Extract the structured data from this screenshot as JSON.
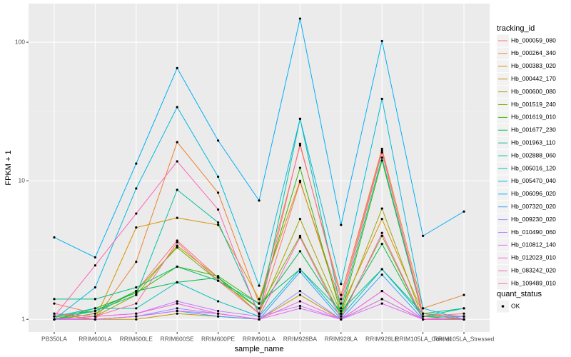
{
  "chart_data": {
    "type": "line",
    "x_label": "sample_name",
    "y_label": "FPKM + 1",
    "categories": [
      "PB350LA",
      "RRIM600LA",
      "RRIM600LE",
      "RRIM600SE",
      "RRIM600PE",
      "RRIM901LA",
      "RRIM928BA",
      "RRIM928LA",
      "RRIM928LE",
      "RRIM105LA_Control",
      "RRIM105LA_Stressed"
    ],
    "log_y": true,
    "ylim": [
      0.81,
      190
    ],
    "yticks": [
      1,
      10,
      100
    ],
    "grid": true,
    "legend_title": "tracking_id",
    "legend_position": "right",
    "point_legend": {
      "title": "quant_status",
      "items": [
        "OK"
      ]
    },
    "series": [
      {
        "name": "Hb_000059_080",
        "color": "#F8766D",
        "values": [
          1.3,
          1.1,
          1.6,
          3.7,
          2.0,
          1.1,
          9.8,
          1.3,
          16,
          1.1,
          1.05
        ]
      },
      {
        "name": "Hb_000264_340",
        "color": "#EA8331",
        "values": [
          1.1,
          1.0,
          2.6,
          19,
          8.2,
          1.3,
          18,
          1.5,
          17,
          1.2,
          1.5
        ]
      },
      {
        "name": "Hb_000383_020",
        "color": "#D89000",
        "values": [
          1.05,
          1.0,
          4.6,
          5.4,
          4.8,
          1.4,
          10,
          1.2,
          5.3,
          1.1,
          1.0
        ]
      },
      {
        "name": "Hb_000442_170",
        "color": "#C09B00",
        "values": [
          1.0,
          1.0,
          1.0,
          1.1,
          1.05,
          1.0,
          1.5,
          1.0,
          1.4,
          1.0,
          1.0
        ]
      },
      {
        "name": "Hb_000600_080",
        "color": "#A3A500",
        "values": [
          1.0,
          1.05,
          1.5,
          3.4,
          2.0,
          1.1,
          5.3,
          1.1,
          6.3,
          1.0,
          1.05
        ]
      },
      {
        "name": "Hb_001519_240",
        "color": "#7CAE00",
        "values": [
          1.0,
          1.1,
          1.6,
          3.3,
          1.9,
          1.2,
          4.0,
          1.05,
          4.0,
          1.0,
          1.0
        ]
      },
      {
        "name": "Hb_001619_010",
        "color": "#39B600",
        "values": [
          1.0,
          1.2,
          1.55,
          2.4,
          2.05,
          1.3,
          12.4,
          1.1,
          14,
          1.05,
          1.0
        ]
      },
      {
        "name": "Hb_001677_230",
        "color": "#00BB4E",
        "values": [
          1.05,
          1.15,
          1.6,
          1.85,
          2.0,
          1.2,
          3.1,
          1.1,
          3.5,
          1.0,
          1.0
        ]
      },
      {
        "name": "Hb_001963_110",
        "color": "#00BF7D",
        "values": [
          1.4,
          1.4,
          1.7,
          2.4,
          1.9,
          1.3,
          2.3,
          1.15,
          2.3,
          1.1,
          1.2
        ]
      },
      {
        "name": "Hb_002888_060",
        "color": "#00C1A3",
        "values": [
          1.0,
          1.15,
          1.5,
          8.6,
          5.0,
          1.1,
          28,
          1.2,
          14.7,
          1.05,
          1.2
        ]
      },
      {
        "name": "Hb_005016_120",
        "color": "#00BFC4",
        "values": [
          1.05,
          1.2,
          1.2,
          1.85,
          1.35,
          1.05,
          2.3,
          1.05,
          2.3,
          1.05,
          1.05
        ]
      },
      {
        "name": "Hb_005470_040",
        "color": "#00BAE0",
        "values": [
          1.0,
          1.7,
          8.8,
          34,
          10.7,
          1.75,
          28,
          1.8,
          39,
          1.2,
          1.0
        ]
      },
      {
        "name": "Hb_006096_020",
        "color": "#00B0F6",
        "values": [
          3.9,
          2.8,
          13.3,
          65,
          19.5,
          7.2,
          148,
          4.8,
          102,
          4.0,
          6.0
        ]
      },
      {
        "name": "Hb_007320_020",
        "color": "#35A2FF",
        "values": [
          1.0,
          1.0,
          1.05,
          1.15,
          1.05,
          1.0,
          2.2,
          1.0,
          2.1,
          1.0,
          1.0
        ]
      },
      {
        "name": "Hb_009230_020",
        "color": "#9590FF",
        "values": [
          1.0,
          1.0,
          1.05,
          1.2,
          1.1,
          1.0,
          1.6,
          1.0,
          1.6,
          1.0,
          1.0
        ]
      },
      {
        "name": "Hb_010490_060",
        "color": "#C77CFF",
        "values": [
          1.0,
          1.05,
          1.1,
          1.35,
          1.15,
          1.05,
          1.25,
          1.0,
          1.4,
          1.0,
          1.05
        ]
      },
      {
        "name": "Hb_010812_140",
        "color": "#E76BF3",
        "values": [
          1.0,
          1.0,
          1.05,
          1.15,
          1.1,
          1.0,
          1.2,
          1.0,
          1.3,
          1.0,
          1.0
        ]
      },
      {
        "name": "Hb_012023_010",
        "color": "#FA62DB",
        "values": [
          1.0,
          1.05,
          1.1,
          1.3,
          1.1,
          1.0,
          1.35,
          1.0,
          1.6,
          1.0,
          1.0
        ]
      },
      {
        "name": "Hb_083242_020",
        "color": "#FF62BC",
        "values": [
          1.05,
          2.45,
          5.8,
          13.8,
          6.2,
          1.05,
          3.9,
          1.0,
          4.2,
          1.0,
          1.0
        ]
      },
      {
        "name": "Hb_109489_010",
        "color": "#FF6C91",
        "values": [
          1.1,
          1.05,
          1.3,
          3.6,
          1.9,
          1.1,
          18.5,
          1.4,
          16.5,
          1.05,
          1.1
        ]
      }
    ]
  }
}
